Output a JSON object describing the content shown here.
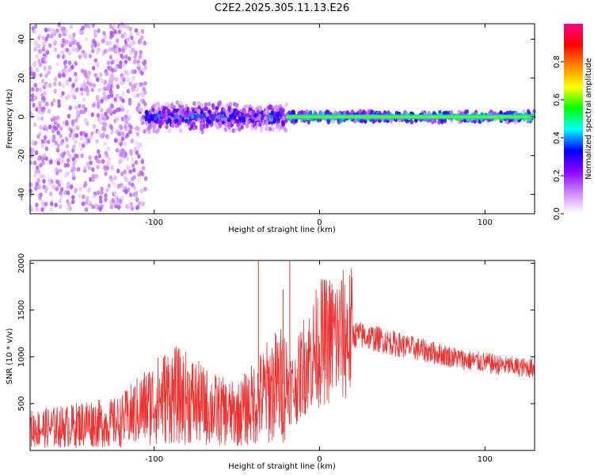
{
  "chart_data": [
    {
      "type": "heatmap",
      "title": "C2E2.2025.305.11.13.E26",
      "xlabel": "Height of straight line (km)",
      "ylabel": "Frequency (Hz)",
      "xlim": [
        -175,
        130
      ],
      "ylim": [
        -50,
        48
      ],
      "xticks": [
        -100,
        0,
        100
      ],
      "xtick_labels": [
        "-100",
        "0",
        "100"
      ],
      "yticks": [
        -40,
        -20,
        0,
        20,
        40
      ],
      "ytick_labels": [
        "-40",
        "-20",
        "0",
        "20",
        "40"
      ],
      "colorbar": {
        "label": "Normalized spectral amplitude",
        "range": [
          0,
          1
        ],
        "ticks": [
          0.0,
          0.2,
          0.4,
          0.6,
          0.8
        ],
        "tick_labels": [
          "0.0",
          "0.2",
          "0.4",
          "0.6",
          "0.8"
        ],
        "colormap": [
          "#ffffff",
          "#cc88ff",
          "#8800ff",
          "#0000ff",
          "#00ffff",
          "#00ff00",
          "#ffff00",
          "#ff8800",
          "#ff0000",
          "#ff0088"
        ]
      },
      "description_bands": [
        {
          "x_range": [
            -175,
            -105
          ],
          "freq_halfwidth": 48,
          "mean_amplitude": 0.12
        },
        {
          "x_range": [
            -105,
            -20
          ],
          "freq_halfwidth": 8,
          "mean_amplitude": 0.3
        },
        {
          "x_range": [
            -20,
            130
          ],
          "freq_halfwidth": 3,
          "mean_amplitude": 0.55
        }
      ]
    },
    {
      "type": "line",
      "title": "",
      "xlabel": "Height of straight line (km)",
      "ylabel": "SNR (10 * v/v)",
      "xlim": [
        -175,
        130
      ],
      "ylim": [
        0,
        2030
      ],
      "xticks": [
        -100,
        0,
        100
      ],
      "xtick_labels": [
        "-100",
        "0",
        "100"
      ],
      "yticks": [
        500,
        1000,
        1500,
        2000
      ],
      "ytick_labels": [
        "500",
        "1000",
        "1500",
        "2000"
      ],
      "color": "#ee3333",
      "series": [
        {
          "name": "SNR",
          "x": [
            -175,
            -160,
            -150,
            -140,
            -130,
            -120,
            -110,
            -100,
            -90,
            -80,
            -70,
            -60,
            -50,
            -40,
            -30,
            -25,
            -20,
            -15,
            -10,
            -5,
            0,
            5,
            10,
            15,
            20,
            25,
            30,
            40,
            50,
            60,
            70,
            80,
            90,
            100,
            110,
            120,
            130
          ],
          "values": [
            230,
            250,
            260,
            300,
            280,
            310,
            420,
            520,
            600,
            560,
            480,
            420,
            380,
            500,
            650,
            700,
            720,
            650,
            900,
            1000,
            1150,
            1180,
            1200,
            1220,
            1240,
            1230,
            1210,
            1170,
            1120,
            1080,
            1040,
            1000,
            960,
            940,
            910,
            890,
            880
          ]
        }
      ],
      "spikes": [
        {
          "x": -37,
          "y": 2030
        },
        {
          "x": -18,
          "y": 2030
        },
        {
          "x": -22,
          "y": 1720
        },
        {
          "x": 8,
          "y": 1720
        }
      ]
    }
  ]
}
